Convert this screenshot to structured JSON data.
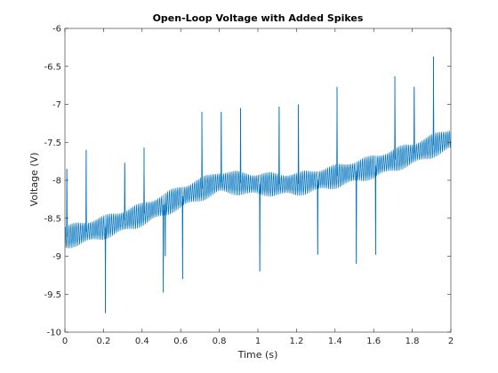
{
  "chart_data": {
    "type": "line",
    "title": "Open-Loop Voltage with Added Spikes",
    "xlabel": "Time (s)",
    "ylabel": "Voltage (V)",
    "xlim": [
      0,
      2
    ],
    "ylim": [
      -10,
      -6
    ],
    "xticks": [
      0,
      0.2,
      0.4,
      0.6,
      0.8,
      1,
      1.2,
      1.4,
      1.6,
      1.8,
      2
    ],
    "xtick_labels": [
      "0",
      "0.2",
      "0.4",
      "0.6",
      "0.8",
      "1",
      "1.2",
      "1.4",
      "1.6",
      "1.8",
      "2"
    ],
    "yticks": [
      -10,
      -9.5,
      -9,
      -8.5,
      -8,
      -7.5,
      -7,
      -6.5,
      -6
    ],
    "ytick_labels": [
      "-10",
      "-9.5",
      "-9",
      "-8.5",
      "-8",
      "-7.5",
      "-7",
      "-6.5",
      "-6"
    ],
    "grid": false,
    "line_color": "#0072BD",
    "series": [
      {
        "name": "",
        "baseline": {
          "x": [
            0,
            0.2,
            0.4,
            0.6,
            0.8,
            1.0,
            1.2,
            1.4,
            1.6,
            1.8,
            2.0
          ],
          "y": [
            -8.75,
            -8.62,
            -8.45,
            -8.22,
            -8.02,
            -8.05,
            -8.05,
            -7.95,
            -7.82,
            -7.65,
            -7.45
          ]
        },
        "oscillation_amplitude": 0.17,
        "oscillation_frequency_hz": 100,
        "spikes": [
          {
            "x": 0.01,
            "y": -7.85
          },
          {
            "x": 0.11,
            "y": -7.6
          },
          {
            "x": 0.21,
            "y": -9.75
          },
          {
            "x": 0.31,
            "y": -7.77
          },
          {
            "x": 0.41,
            "y": -7.57
          },
          {
            "x": 0.51,
            "y": -9.48
          },
          {
            "x": 0.52,
            "y": -9.0
          },
          {
            "x": 0.61,
            "y": -9.3
          },
          {
            "x": 0.71,
            "y": -7.1
          },
          {
            "x": 0.81,
            "y": -7.1
          },
          {
            "x": 0.91,
            "y": -7.05
          },
          {
            "x": 1.01,
            "y": -9.2
          },
          {
            "x": 1.11,
            "y": -7.03
          },
          {
            "x": 1.21,
            "y": -7.0
          },
          {
            "x": 1.31,
            "y": -8.98
          },
          {
            "x": 1.41,
            "y": -6.77
          },
          {
            "x": 1.51,
            "y": -9.1
          },
          {
            "x": 1.61,
            "y": -8.98
          },
          {
            "x": 1.71,
            "y": -6.63
          },
          {
            "x": 1.81,
            "y": -6.77
          },
          {
            "x": 1.91,
            "y": -6.37
          }
        ]
      }
    ]
  }
}
